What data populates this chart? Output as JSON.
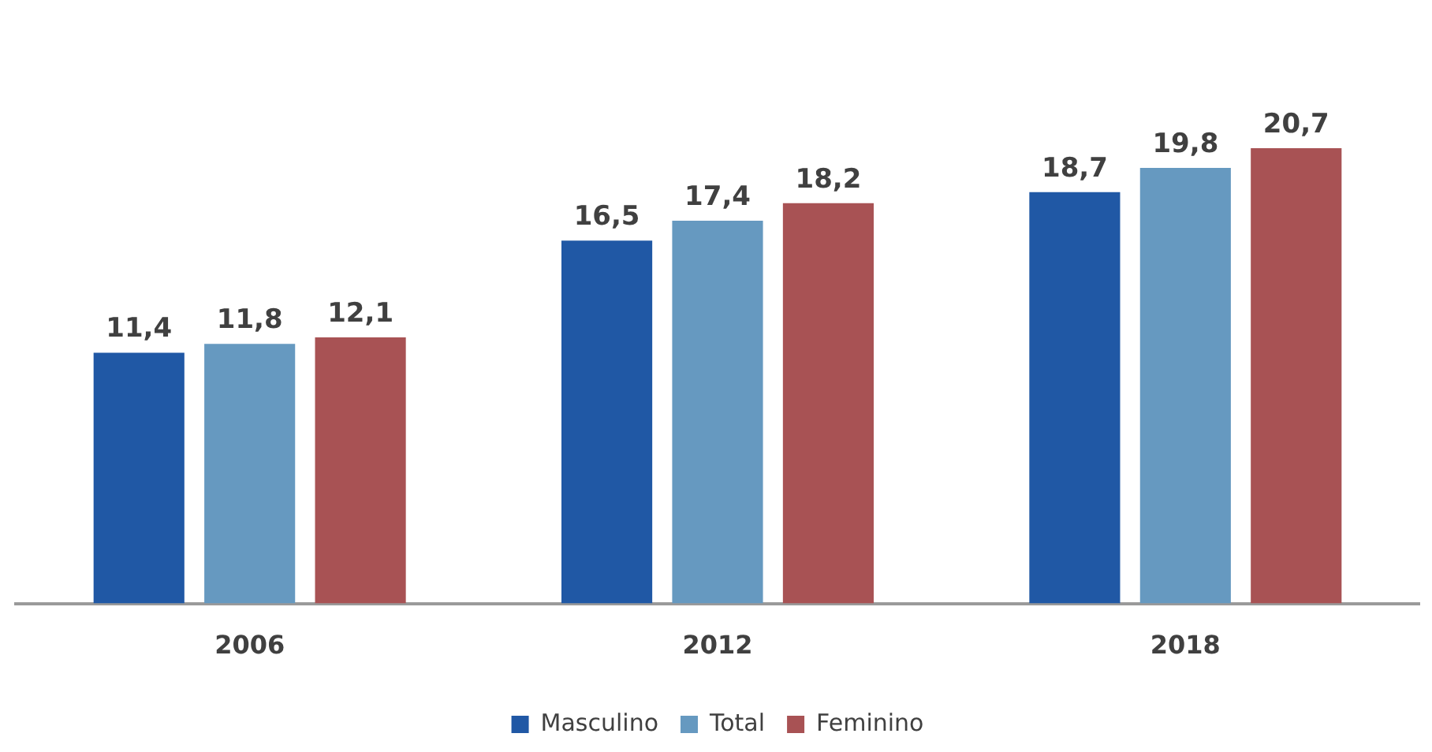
{
  "chart_data": {
    "type": "bar",
    "categories": [
      "2006",
      "2012",
      "2018"
    ],
    "series": [
      {
        "name": "Masculino",
        "color": "#2058a5",
        "values": [
          11.4,
          16.5,
          18.7
        ],
        "value_labels": [
          "11,4",
          "16,5",
          "18,7"
        ]
      },
      {
        "name": "Total",
        "color": "#6699c0",
        "values": [
          11.8,
          17.4,
          19.8
        ],
        "value_labels": [
          "11,8",
          "17,4",
          "19,8"
        ]
      },
      {
        "name": "Feminino",
        "color": "#a85254",
        "values": [
          12.1,
          18.2,
          20.7
        ],
        "value_labels": [
          "12,1",
          "18,2",
          "20,7"
        ]
      }
    ],
    "grid": false,
    "legend": "bottom",
    "tick_labels": "x"
  }
}
